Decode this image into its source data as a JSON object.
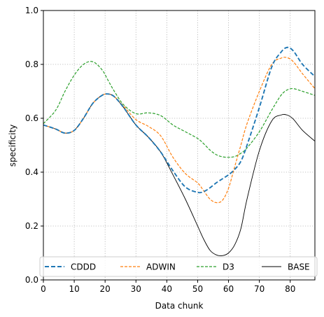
{
  "chart_data": {
    "type": "line",
    "xlabel": "Data chunk",
    "ylabel": "specificity",
    "xlim": [
      0,
      88
    ],
    "ylim": [
      0.0,
      1.0
    ],
    "xticks": [
      0,
      10,
      20,
      30,
      40,
      50,
      60,
      70,
      80
    ],
    "yticks": [
      0.0,
      0.2,
      0.4,
      0.6,
      0.8,
      1.0
    ],
    "xtick_labels": [
      "0",
      "10",
      "20",
      "30",
      "40",
      "50",
      "60",
      "70",
      "80"
    ],
    "ytick_labels": [
      "0.0",
      "0.2",
      "0.4",
      "0.6",
      "0.8",
      "1.0"
    ],
    "grid": true,
    "legend_position": "bottom",
    "x": [
      0,
      4,
      7,
      10,
      13,
      16,
      19,
      21,
      23,
      26,
      30,
      34,
      38,
      42,
      46,
      50,
      52,
      54,
      56,
      58,
      60,
      62,
      64,
      66,
      70,
      74,
      77,
      79,
      81,
      84,
      88
    ],
    "series": [
      {
        "name": "CDDD",
        "color": "#1f77b4",
        "style": "dashed-thick",
        "values": [
          0.575,
          0.56,
          0.545,
          0.555,
          0.6,
          0.655,
          0.685,
          0.69,
          0.68,
          0.64,
          0.575,
          0.53,
          0.475,
          0.405,
          0.345,
          0.325,
          0.328,
          0.342,
          0.36,
          0.375,
          0.39,
          0.41,
          0.44,
          0.5,
          0.64,
          0.79,
          0.845,
          0.863,
          0.85,
          0.8,
          0.755
        ]
      },
      {
        "name": "ADWIN",
        "color": "#ff7f0e",
        "style": "dashed",
        "values": [
          0.575,
          0.56,
          0.545,
          0.555,
          0.6,
          0.655,
          0.685,
          0.69,
          0.68,
          0.645,
          0.595,
          0.57,
          0.535,
          0.455,
          0.395,
          0.36,
          0.33,
          0.3,
          0.287,
          0.295,
          0.34,
          0.42,
          0.5,
          0.58,
          0.7,
          0.8,
          0.823,
          0.825,
          0.81,
          0.765,
          0.71
        ]
      },
      {
        "name": "D3",
        "color": "#2ca02c",
        "style": "dashed",
        "values": [
          0.58,
          0.63,
          0.7,
          0.76,
          0.8,
          0.81,
          0.78,
          0.74,
          0.7,
          0.65,
          0.617,
          0.62,
          0.61,
          0.575,
          0.55,
          0.525,
          0.505,
          0.482,
          0.465,
          0.457,
          0.455,
          0.458,
          0.47,
          0.49,
          0.55,
          0.63,
          0.685,
          0.705,
          0.71,
          0.7,
          0.685
        ]
      },
      {
        "name": "BASE",
        "color": "#000000",
        "style": "solid",
        "values": [
          0.575,
          0.56,
          0.545,
          0.555,
          0.6,
          0.655,
          0.685,
          0.69,
          0.68,
          0.64,
          0.575,
          0.53,
          0.475,
          0.39,
          0.3,
          0.2,
          0.15,
          0.11,
          0.093,
          0.09,
          0.1,
          0.13,
          0.19,
          0.3,
          0.48,
          0.59,
          0.612,
          0.612,
          0.597,
          0.555,
          0.515
        ]
      }
    ]
  }
}
